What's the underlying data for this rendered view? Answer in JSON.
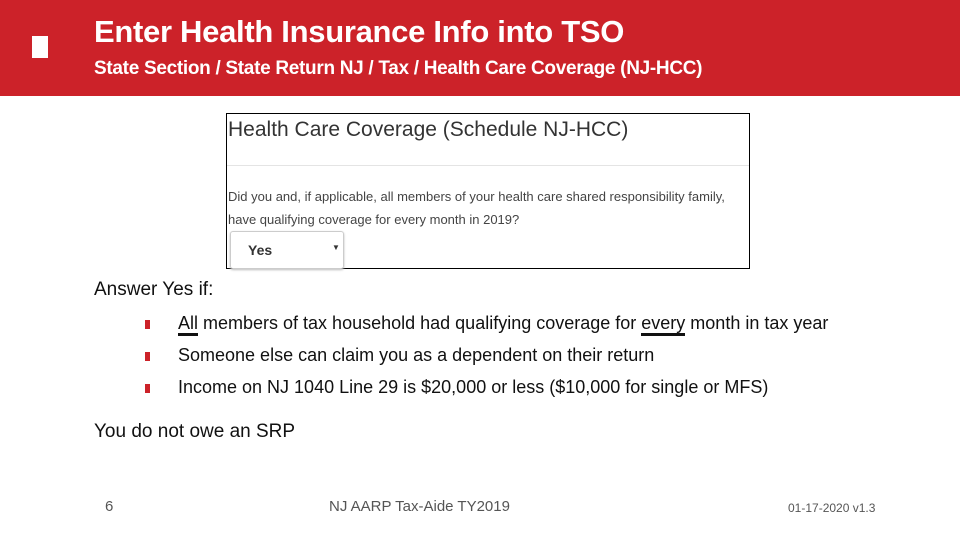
{
  "header": {
    "title": "Enter Health Insurance Info into TSO",
    "subtitle": "State Section / State Return NJ / Tax / Health Care Coverage (NJ-HCC)",
    "color": "#cc2229"
  },
  "screenshot": {
    "title": "Health Care Coverage (Schedule NJ-HCC)",
    "question": "Did you and, if applicable, all members of your health care shared responsibility family, have qualifying coverage for every month in 2019?",
    "select_value": "Yes"
  },
  "body": {
    "lead": "Answer Yes if:",
    "bullets": [
      {
        "u1": "All",
        "mid": " members of tax household had qualifying coverage for ",
        "u2": "every",
        "end": " month in tax year"
      },
      {
        "text": "Someone else can claim you as a dependent on their return"
      },
      {
        "text": "Income on NJ 1040 Line 29 is $20,000 or less ($10,000 for single or MFS)"
      }
    ],
    "conclusion": "You do not owe an SRP"
  },
  "footer": {
    "page": "6",
    "center": "NJ AARP Tax-Aide TY2019",
    "version": "01-17-2020 v1.3"
  }
}
